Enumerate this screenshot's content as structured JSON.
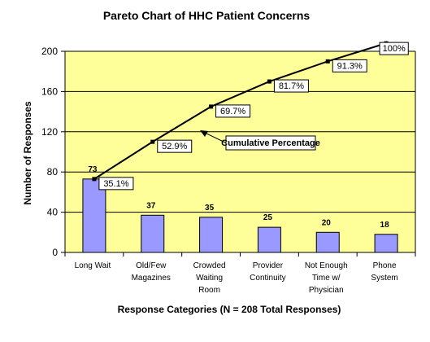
{
  "chart_data": {
    "type": "bar",
    "title": "Pareto Chart of HHC Patient Concerns",
    "xlabel": "Response Categories (N = 208 Total Responses)",
    "ylabel": "Number of Responses",
    "ylim": [
      0,
      200
    ],
    "yticks": [
      "0",
      "40",
      "80",
      "120",
      "160",
      "200"
    ],
    "grid": true,
    "categories": [
      [
        "Long Wait"
      ],
      [
        "Old/Few",
        "Magazines"
      ],
      [
        "Crowded",
        "Waiting",
        "Room"
      ],
      [
        "Provider",
        "Continuity"
      ],
      [
        "Not Enough",
        "Time w/",
        "Physician"
      ],
      [
        "Phone",
        "System"
      ]
    ],
    "values": [
      73,
      37,
      35,
      25,
      20,
      18
    ],
    "value_labels": [
      "73",
      "37",
      "35",
      "25",
      "20",
      "18"
    ],
    "cumulative": {
      "values": [
        73,
        110,
        145,
        170,
        190,
        208
      ],
      "labels": [
        "35.1%",
        "52.9%",
        "69.7%",
        "81.7%",
        "91.3%",
        "100%"
      ]
    },
    "annotation": "Cumulative Percentage",
    "colors": {
      "plot_background": "#ffff99",
      "bar_fill": "#9999ff",
      "bar_stroke": "#000000",
      "line": "#000000",
      "grid": "#000000"
    }
  }
}
